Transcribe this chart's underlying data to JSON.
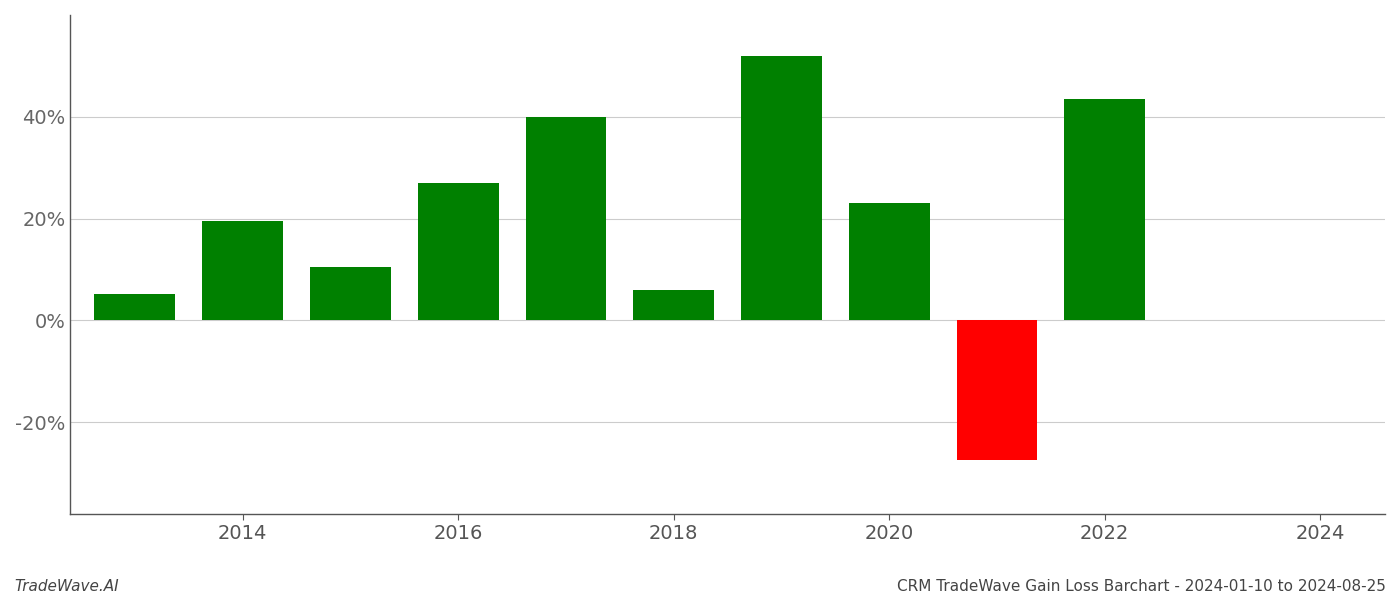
{
  "years": [
    2013,
    2014,
    2015,
    2016,
    2017,
    2018,
    2019,
    2020,
    2021,
    2022,
    2023
  ],
  "values": [
    5.2,
    19.5,
    10.5,
    27.0,
    40.0,
    6.0,
    52.0,
    23.0,
    -27.5,
    43.5,
    0.0
  ],
  "bar_colors": [
    "#008000",
    "#008000",
    "#008000",
    "#008000",
    "#008000",
    "#008000",
    "#008000",
    "#008000",
    "#ff0000",
    "#008000",
    "#008000"
  ],
  "ylim": [
    -38,
    60
  ],
  "yticks": [
    -20,
    0,
    20,
    40
  ],
  "xtick_positions": [
    2014,
    2016,
    2018,
    2020,
    2022,
    2024
  ],
  "xtick_labels": [
    "2014",
    "2016",
    "2018",
    "2020",
    "2022",
    "2024"
  ],
  "xlim": [
    2012.4,
    2024.6
  ],
  "footer_left": "TradeWave.AI",
  "footer_right": "CRM TradeWave Gain Loss Barchart - 2024-01-10 to 2024-08-25",
  "bg_color": "#ffffff",
  "grid_color": "#cccccc",
  "axis_color": "#555555",
  "bar_width": 0.75,
  "tick_fontsize": 14,
  "footer_fontsize": 11
}
